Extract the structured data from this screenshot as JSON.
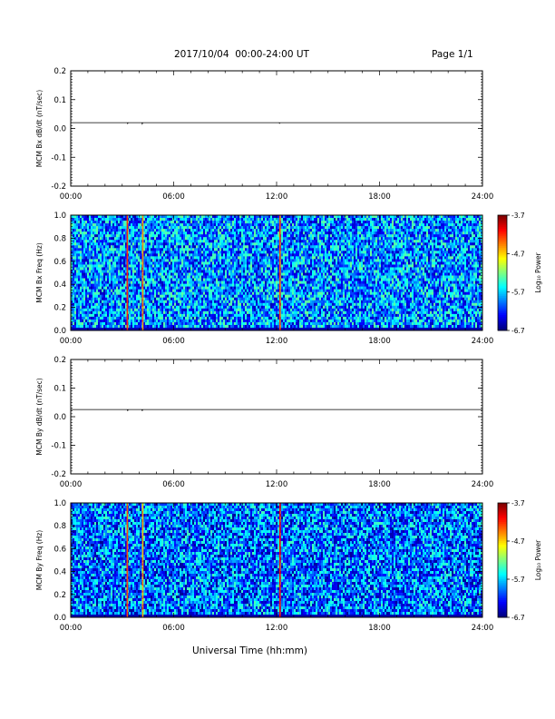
{
  "header": {
    "title": "2017/10/04  00:00-24:00 UT",
    "page": "Page 1/1"
  },
  "xaxis": {
    "label": "Universal Time (hh:mm)",
    "ticks": [
      "00:00",
      "06:00",
      "12:00",
      "18:00",
      "24:00"
    ],
    "range_hours": [
      0,
      24
    ]
  },
  "chart_data": [
    {
      "type": "line",
      "id": "bx_dbdt",
      "ylabel": "MCM Bx dB/dt (nT/sec)",
      "ylim": [
        -0.2,
        0.2
      ],
      "yticks": [
        "0.2",
        "0.1",
        "0.0",
        "-0.1",
        "-0.2"
      ],
      "ytick_values": [
        0.2,
        0.1,
        0.0,
        -0.1,
        -0.2
      ],
      "x_hours": [
        0,
        3.3,
        3.32,
        3.34,
        4.15,
        4.17,
        4.19,
        12.15,
        12.17,
        12.19,
        24
      ],
      "values": [
        0.02,
        0.02,
        0.017,
        0.02,
        0.02,
        0.016,
        0.02,
        0.02,
        0.018,
        0.02,
        0.02
      ],
      "grid": false
    },
    {
      "type": "heatmap",
      "id": "bx_spec",
      "ylabel": "MCM Bx Freq (Hz)",
      "ylim": [
        0.0,
        1.0
      ],
      "yticks": [
        "1.0",
        "0.8",
        "0.6",
        "0.4",
        "0.2",
        "0.0"
      ],
      "ytick_values": [
        1.0,
        0.8,
        0.6,
        0.4,
        0.2,
        0.0
      ],
      "colorbar": {
        "label": "Log₁₀ Power",
        "ticks": [
          "-3.7",
          "-4.7",
          "-5.7",
          "-6.7"
        ],
        "tick_values": [
          -3.7,
          -4.7,
          -5.7,
          -6.7
        ],
        "range": [
          -6.7,
          -3.7
        ]
      },
      "background_level": -5.9,
      "vertical_events_hours": [
        3.3,
        4.2,
        12.2
      ],
      "event_levels": [
        -4.2,
        -4.5,
        -4.3
      ]
    },
    {
      "type": "line",
      "id": "by_dbdt",
      "ylabel": "MCM By dB/dt (nT/sec)",
      "ylim": [
        -0.2,
        0.2
      ],
      "yticks": [
        "0.2",
        "0.1",
        "0.0",
        "-0.1",
        "-0.2"
      ],
      "ytick_values": [
        0.2,
        0.1,
        0.0,
        -0.1,
        -0.2
      ],
      "x_hours": [
        0,
        3.3,
        3.32,
        3.34,
        4.15,
        4.17,
        4.19,
        24
      ],
      "values": [
        0.025,
        0.025,
        0.02,
        0.025,
        0.025,
        0.02,
        0.025,
        0.025
      ],
      "grid": false
    },
    {
      "type": "heatmap",
      "id": "by_spec",
      "ylabel": "MCM By Freq (Hz)",
      "ylim": [
        0.0,
        1.0
      ],
      "yticks": [
        "1.0",
        "0.8",
        "0.6",
        "0.4",
        "0.2",
        "0.0"
      ],
      "ytick_values": [
        1.0,
        0.8,
        0.6,
        0.4,
        0.2,
        0.0
      ],
      "colorbar": {
        "label": "Log₁₀ Power",
        "ticks": [
          "-3.7",
          "-4.7",
          "-5.7",
          "-6.7"
        ],
        "tick_values": [
          -3.7,
          -4.7,
          -5.7,
          -6.7
        ],
        "range": [
          -6.7,
          -3.7
        ]
      },
      "background_level": -6.0,
      "vertical_events_hours": [
        3.3,
        4.2,
        12.2
      ],
      "event_levels": [
        -4.3,
        -4.6,
        -4.1
      ]
    }
  ]
}
